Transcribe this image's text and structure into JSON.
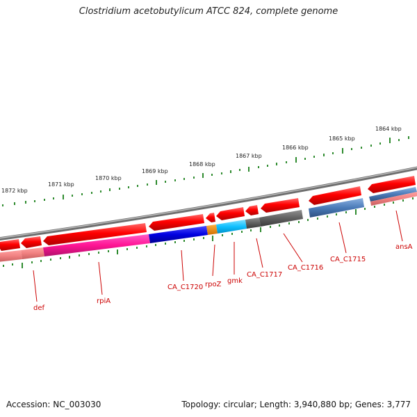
{
  "title": "Clostridium acetobutylicum ATCC 824, complete genome",
  "footer": {
    "accession": "Accession: NC_003030",
    "topology": "Topology: circular; Length: 3,940,880 bp; Genes: 3,777"
  },
  "colors": {
    "backbone": "#8a8a8a",
    "tick": "#2e8b2e",
    "label": "#cc0000",
    "cds_forward": "#ff0000"
  },
  "scale_labels": [
    "1872 kbp",
    "1871 kbp",
    "1870 kbp",
    "1869 kbp",
    "1868 kbp",
    "1867 kbp",
    "1866 kbp",
    "1865 kbp",
    "1864 kbp"
  ],
  "gene_labels": [
    "def",
    "rpiA",
    "CA_C1720",
    "rpoZ",
    "gmk",
    "CA_C1717",
    "CA_C1716",
    "CA_C1715",
    "ansA"
  ]
}
